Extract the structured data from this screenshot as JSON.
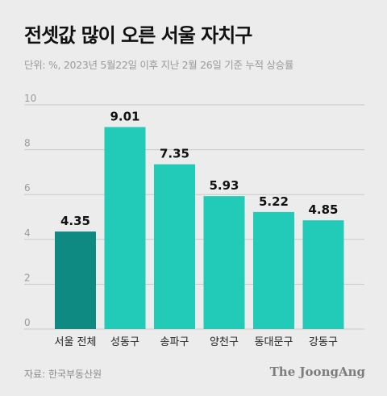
{
  "title": "전셋값 많이 오른 서울 자치구",
  "subtitle": "단위: %, 2023년 5월22일 이후 지난 2월 26일 기준 누적 상승률",
  "source": "자료: 한국부동산원",
  "brand": "The JoongAng",
  "chart_data": {
    "type": "bar",
    "categories": [
      "서울 전체",
      "성동구",
      "송파구",
      "양천구",
      "동대문구",
      "강동구"
    ],
    "values": [
      4.35,
      9.01,
      7.35,
      5.93,
      5.22,
      4.85
    ],
    "value_labels": [
      "4.35",
      "9.01",
      "7.35",
      "5.93",
      "5.22",
      "4.85"
    ],
    "ylim": [
      0,
      10
    ],
    "yticks": [
      "0",
      "2",
      "4",
      "6",
      "8",
      "10"
    ],
    "grid": true,
    "colors": {
      "highlight": "#0e8a83",
      "bar": "#22cbb8",
      "grid": "#c9c9c9",
      "tick": "#9a9a9a"
    }
  }
}
